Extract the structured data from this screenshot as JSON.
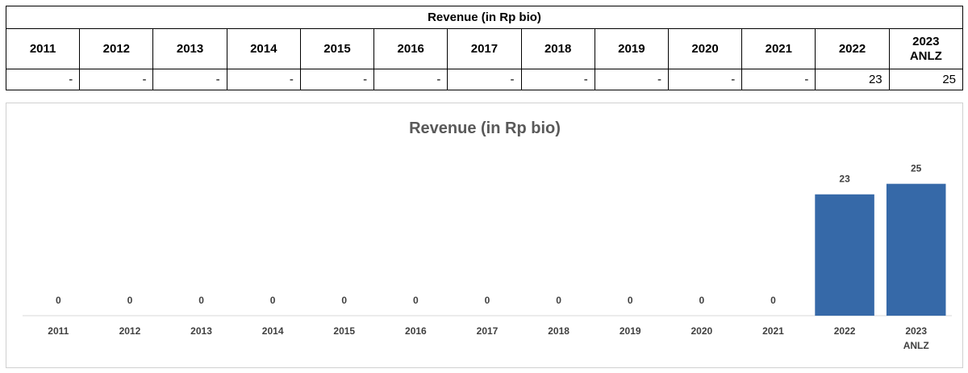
{
  "table": {
    "title": "Revenue (in Rp bio)",
    "years": [
      "2011",
      "2012",
      "2013",
      "2014",
      "2015",
      "2016",
      "2017",
      "2018",
      "2019",
      "2020",
      "2021",
      "2022",
      "2023\nANLZ"
    ],
    "values": [
      "-",
      "-",
      "-",
      "-",
      "-",
      "-",
      "-",
      "-",
      "-",
      "-",
      "-",
      "23",
      "25"
    ]
  },
  "chart_data": {
    "type": "bar",
    "title": "Revenue (in Rp bio)",
    "categories": [
      "2011",
      "2012",
      "2013",
      "2014",
      "2015",
      "2016",
      "2017",
      "2018",
      "2019",
      "2020",
      "2021",
      "2022",
      "2023\nANLZ"
    ],
    "values": [
      0,
      0,
      0,
      0,
      0,
      0,
      0,
      0,
      0,
      0,
      0,
      23,
      25
    ],
    "xlabel": "",
    "ylabel": "",
    "ylim": [
      0,
      30
    ],
    "bar_color": "#3669a8",
    "grid": false,
    "legend": "none"
  }
}
